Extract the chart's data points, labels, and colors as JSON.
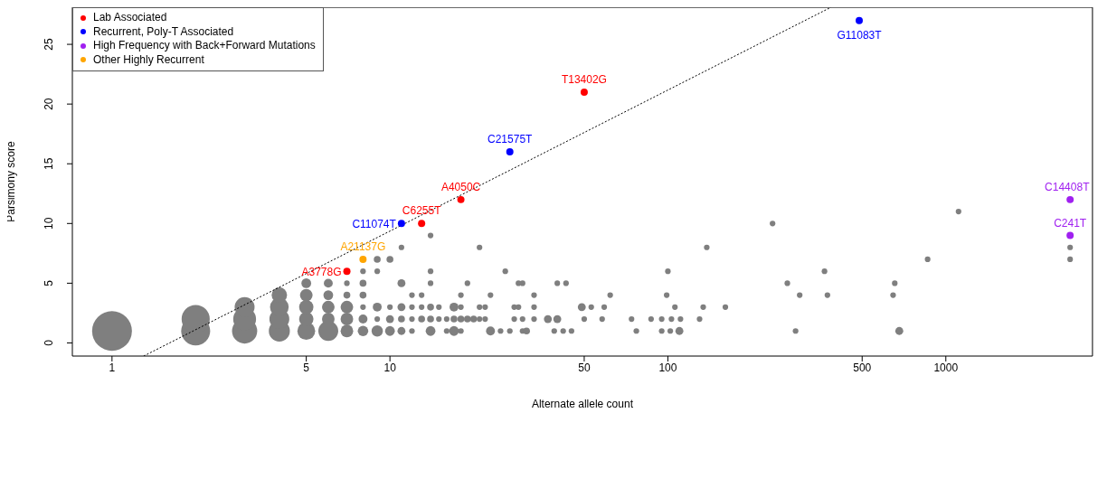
{
  "chart_data": {
    "type": "bubble",
    "xlabel": "Alternate allele count",
    "ylabel": "Parsimony score",
    "log": "x",
    "xlim": [
      0.72,
      3370
    ],
    "xticks": [
      1,
      5,
      10,
      50,
      100,
      500,
      1000
    ],
    "ylim": [
      -1.1,
      28.1
    ],
    "yticks": [
      0,
      5,
      10,
      15,
      20,
      25
    ],
    "legend": "top left",
    "marker": "circle",
    "series": [
      {
        "color": "#7f7f7f",
        "x": [
          1,
          2,
          2,
          3,
          3,
          3,
          4,
          4,
          4,
          4,
          5,
          5,
          5,
          5,
          5,
          6,
          6,
          6,
          6,
          6,
          7,
          7,
          7,
          7,
          7,
          8,
          8,
          8,
          8,
          8,
          8,
          9,
          9,
          9,
          9,
          9,
          10,
          10,
          10,
          10,
          11,
          11,
          11,
          11,
          11,
          12,
          12,
          12,
          12,
          13,
          13,
          13,
          14,
          14,
          14,
          14,
          14,
          14,
          15,
          15,
          16,
          16,
          17,
          17,
          17,
          18,
          18,
          18,
          18,
          19,
          19,
          20,
          21,
          21,
          21,
          22,
          22,
          23,
          23,
          25,
          26,
          27,
          28,
          28,
          29,
          29,
          30,
          30,
          30,
          31,
          33,
          33,
          33,
          37,
          39,
          40,
          40,
          42,
          43,
          45,
          49,
          50,
          53,
          58,
          59,
          62,
          74,
          77,
          87,
          95,
          95,
          99,
          100,
          102,
          103,
          106,
          110,
          111,
          130,
          134,
          138,
          161,
          238,
          269,
          288,
          298,
          366,
          375,
          646,
          655,
          680,
          860,
          1111,
          2800,
          2800
        ],
        "values": [
          1,
          1,
          2,
          1,
          2,
          3,
          1,
          2,
          3,
          4,
          1,
          2,
          3,
          4,
          5,
          1,
          2,
          3,
          4,
          5,
          1,
          2,
          3,
          4,
          5,
          1,
          2,
          3,
          4,
          5,
          6,
          1,
          2,
          3,
          6,
          7,
          1,
          2,
          3,
          7,
          1,
          2,
          3,
          5,
          8,
          1,
          2,
          3,
          4,
          2,
          3,
          4,
          1,
          2,
          3,
          5,
          6,
          9,
          2,
          3,
          1,
          2,
          1,
          2,
          3,
          1,
          2,
          3,
          4,
          2,
          5,
          2,
          2,
          3,
          8,
          2,
          3,
          1,
          4,
          1,
          6,
          1,
          2,
          3,
          3,
          5,
          1,
          2,
          5,
          1,
          2,
          3,
          4,
          2,
          1,
          2,
          5,
          1,
          5,
          1,
          3,
          2,
          3,
          2,
          3,
          4,
          2,
          1,
          2,
          1,
          2,
          4,
          6,
          1,
          2,
          3,
          1,
          2,
          2,
          3,
          8,
          3,
          10,
          5,
          1,
          4,
          6,
          4,
          4,
          5,
          1,
          7,
          11,
          8,
          7
        ],
        "sizes": [
          1,
          0.53,
          0.5,
          0.4,
          0.33,
          0.25,
          0.28,
          0.25,
          0.22,
          0.15,
          0.2,
          0.13,
          0.13,
          0.1,
          0.06,
          0.25,
          0.1,
          0.1,
          0.06,
          0.05,
          0.1,
          0.1,
          0.1,
          0.03,
          0.02,
          0.07,
          0.05,
          0.02,
          0.03,
          0.03,
          0.02,
          0.08,
          0.02,
          0.05,
          0.02,
          0.03,
          0.06,
          0.04,
          0.02,
          0.03,
          0.04,
          0.03,
          0.04,
          0.04,
          0.02,
          0.02,
          0.02,
          0.02,
          0.02,
          0.03,
          0.02,
          0.02,
          0.06,
          0.03,
          0.03,
          0.02,
          0.02,
          0.02,
          0.02,
          0.02,
          0.02,
          0.02,
          0.06,
          0.03,
          0.05,
          0.02,
          0.03,
          0.02,
          0.02,
          0.03,
          0.02,
          0.03,
          0.02,
          0.02,
          0.02,
          0.02,
          0.02,
          0.05,
          0.02,
          0.02,
          0.02,
          0.02,
          0.02,
          0.02,
          0.02,
          0.02,
          0.02,
          0.02,
          0.02,
          0.03,
          0.02,
          0.02,
          0.02,
          0.04,
          0.02,
          0.04,
          0.02,
          0.02,
          0.02,
          0.02,
          0.04,
          0.02,
          0.02,
          0.02,
          0.02,
          0.02,
          0.02,
          0.02,
          0.02,
          0.02,
          0.02,
          0.02,
          0.02,
          0.02,
          0.02,
          0.02,
          0.04,
          0.02,
          0.02,
          0.02,
          0.02,
          0.02,
          0.02,
          0.02,
          0.02,
          0.02,
          0.02,
          0.02,
          0.02,
          0.02,
          0.04,
          0.02,
          0.02,
          0.02,
          0.02
        ]
      },
      {
        "type": "line",
        "color": "#000000",
        "line_style": "dotted",
        "marker": "none",
        "x": [
          1.3,
          386
        ],
        "values": [
          -1.1,
          28.1
        ]
      },
      {
        "type": "scatter",
        "name": "Lab Associated",
        "color": "#ff0000",
        "x": [
          7,
          13,
          18,
          50
        ],
        "values": [
          6,
          10,
          12,
          21
        ]
      },
      {
        "type": "scatter",
        "name": "Recurrent, Poly-T Associated",
        "color": "#0000ff",
        "x": [
          11,
          27,
          488
        ],
        "values": [
          10,
          16,
          27
        ]
      },
      {
        "type": "scatter",
        "name": "High Frequency with Back+Forward Mutations",
        "color": "#a020f0",
        "x": [
          2800,
          2800
        ],
        "values": [
          12,
          9
        ]
      },
      {
        "type": "scatter",
        "name": "Other Highly Recurrent",
        "color": "#ffa500",
        "x": [
          8
        ],
        "values": [
          7
        ]
      }
    ],
    "annotations": [
      {
        "text": "A3778G",
        "x": 7,
        "y": 6
      },
      {
        "text": "A21137G",
        "x": 8,
        "y": 7
      },
      {
        "text": "C11074T",
        "x": 11,
        "y": 10
      },
      {
        "text": "C6255T",
        "x": 13,
        "y": 10
      },
      {
        "text": "A4050C",
        "x": 18,
        "y": 12
      },
      {
        "text": "C21575T",
        "x": 27,
        "y": 16
      },
      {
        "text": "T13402G",
        "x": 50,
        "y": 21
      },
      {
        "text": "G11083T",
        "x": 488,
        "y": 27
      },
      {
        "text": "C14408T",
        "x": 2800,
        "y": 12
      },
      {
        "text": "C241T",
        "x": 2800,
        "y": 9
      }
    ]
  }
}
